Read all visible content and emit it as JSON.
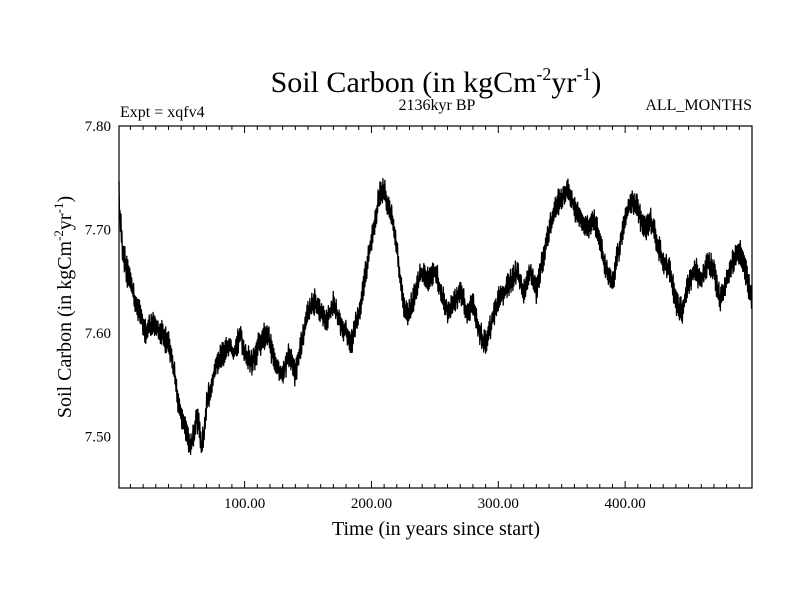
{
  "chart_data": {
    "type": "line",
    "title": {
      "main": "Soil Carbon (in kgCm",
      "sup1": "-2",
      "mid": "yr",
      "sup2": "-1",
      "end": ")"
    },
    "expt_label": "Expt = xqfv4",
    "period_label": "2136kyr BP",
    "months_label": "ALL_MONTHS",
    "xlabel": "Time (in years since start)",
    "ylabel": {
      "main": "Soil Carbon (in kgCm",
      "sup1": "-2",
      "mid": "yr",
      "sup2": "-1",
      "end": ")"
    },
    "xlim": [
      1,
      500
    ],
    "ylim": [
      7.45,
      7.8
    ],
    "xticks": [
      100,
      200,
      300,
      400
    ],
    "xtick_labels": [
      "100.00",
      "200.00",
      "300.00",
      "400.00"
    ],
    "yticks": [
      7.5,
      7.6,
      7.7,
      7.8
    ],
    "ytick_labels": [
      "7.50",
      "7.60",
      "7.70",
      "7.80"
    ],
    "line_color": "#000000",
    "noise_amplitude": 0.012,
    "series": [
      {
        "name": "Soil Carbon",
        "x": [
          1,
          2,
          4,
          7,
          10,
          14,
          18,
          22,
          27,
          33,
          40,
          45,
          48,
          50,
          53,
          57,
          60,
          62,
          64,
          66,
          68,
          70,
          74,
          78,
          83,
          88,
          92,
          97,
          100,
          106,
          112,
          118,
          124,
          130,
          135,
          140,
          145,
          150,
          155,
          160,
          165,
          170,
          175,
          180,
          184,
          188,
          192,
          197,
          202,
          206,
          210,
          214,
          218,
          222,
          226,
          230,
          235,
          240,
          245,
          250,
          255,
          260,
          265,
          270,
          275,
          280,
          285,
          290,
          295,
          300,
          305,
          310,
          315,
          320,
          325,
          330,
          335,
          340,
          345,
          350,
          355,
          360,
          365,
          370,
          375,
          380,
          385,
          390,
          395,
          400,
          405,
          410,
          415,
          420,
          425,
          430,
          435,
          440,
          445,
          450,
          455,
          460,
          465,
          470,
          475,
          480,
          485,
          490,
          495,
          500
        ],
        "y": [
          7.74,
          7.71,
          7.68,
          7.66,
          7.65,
          7.63,
          7.62,
          7.6,
          7.61,
          7.6,
          7.59,
          7.56,
          7.53,
          7.52,
          7.51,
          7.49,
          7.5,
          7.52,
          7.51,
          7.49,
          7.5,
          7.53,
          7.55,
          7.57,
          7.58,
          7.59,
          7.58,
          7.6,
          7.58,
          7.57,
          7.59,
          7.6,
          7.57,
          7.56,
          7.58,
          7.56,
          7.59,
          7.62,
          7.63,
          7.62,
          7.61,
          7.63,
          7.61,
          7.6,
          7.59,
          7.61,
          7.63,
          7.67,
          7.7,
          7.73,
          7.74,
          7.72,
          7.7,
          7.66,
          7.62,
          7.62,
          7.64,
          7.66,
          7.65,
          7.66,
          7.64,
          7.62,
          7.63,
          7.64,
          7.62,
          7.63,
          7.6,
          7.59,
          7.61,
          7.63,
          7.64,
          7.65,
          7.66,
          7.64,
          7.66,
          7.64,
          7.67,
          7.7,
          7.72,
          7.73,
          7.74,
          7.72,
          7.71,
          7.7,
          7.71,
          7.69,
          7.66,
          7.65,
          7.68,
          7.71,
          7.73,
          7.72,
          7.7,
          7.71,
          7.69,
          7.67,
          7.66,
          7.63,
          7.62,
          7.65,
          7.66,
          7.65,
          7.67,
          7.66,
          7.63,
          7.65,
          7.67,
          7.68,
          7.66,
          7.63
        ]
      }
    ]
  }
}
